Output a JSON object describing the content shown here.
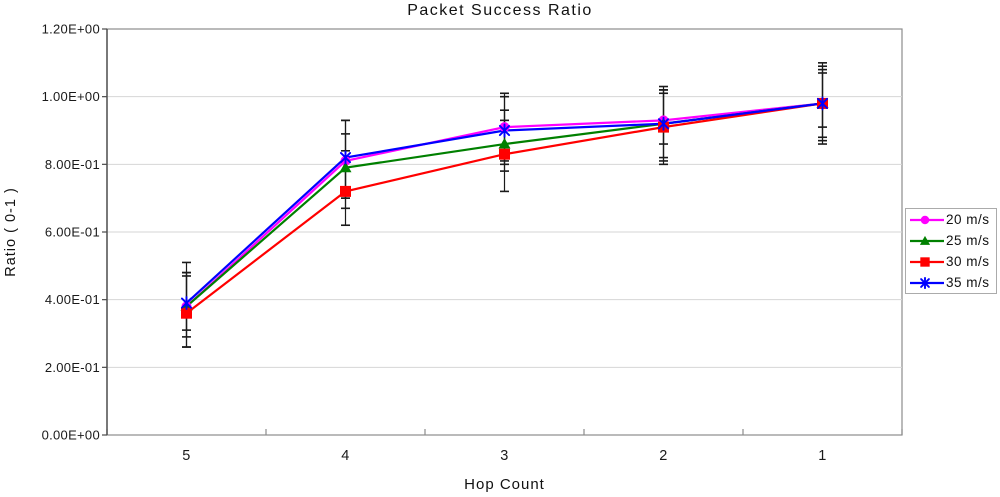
{
  "chart_data": {
    "type": "line",
    "title": "Packet Success Ratio",
    "xlabel": "Hop Count",
    "ylabel": "Ratio ( 0-1 )",
    "categories": [
      "5",
      "4",
      "3",
      "2",
      "1"
    ],
    "y_tick_labels": [
      "0.00E+00",
      "2.00E-01",
      "4.00E-01",
      "6.00E-01",
      "8.00E-01",
      "1.00E+00",
      "1.20E+00"
    ],
    "ylim": [
      0,
      1.2
    ],
    "y_tick_step": 0.2,
    "grid": "horizontal",
    "legend_position": "right",
    "series": [
      {
        "name": "20 m/s",
        "color": "#FF00FF",
        "marker": "circle",
        "values": [
          0.38,
          0.81,
          0.91,
          0.93,
          0.98
        ],
        "err_up": [
          0.48,
          0.93,
          1.01,
          1.03,
          1.1
        ],
        "err_down": [
          0.26,
          0.7,
          0.81,
          0.86,
          0.87
        ]
      },
      {
        "name": "25 m/s",
        "color": "#008000",
        "marker": "triangle",
        "values": [
          0.38,
          0.79,
          0.86,
          0.92,
          0.98
        ],
        "err_up": [
          0.48,
          0.89,
          0.96,
          1.02,
          1.08
        ],
        "err_down": [
          0.31,
          0.67,
          0.78,
          0.82,
          0.91
        ]
      },
      {
        "name": "30 m/s",
        "color": "#FF0000",
        "marker": "square",
        "values": [
          0.36,
          0.72,
          0.83,
          0.91,
          0.98
        ],
        "err_up": [
          0.47,
          0.84,
          0.93,
          1.01,
          1.07
        ],
        "err_down": [
          0.26,
          0.62,
          0.72,
          0.8,
          0.86
        ]
      },
      {
        "name": "35 m/s",
        "color": "#0000FF",
        "marker": "asterisk",
        "values": [
          0.39,
          0.82,
          0.9,
          0.92,
          0.98
        ],
        "err_up": [
          0.51,
          0.93,
          1.0,
          1.02,
          1.09
        ],
        "err_down": [
          0.29,
          0.7,
          0.8,
          0.81,
          0.88
        ]
      }
    ]
  },
  "colors": {
    "background": "#FFFFFF",
    "grid": "#D6D6D6",
    "frame": "#8C8C8C",
    "y_axis": "#4A4A4A",
    "error_bar": "#1A1A1A",
    "tick_text": "#1A1A1A",
    "legend_border": "#ABABAB"
  }
}
